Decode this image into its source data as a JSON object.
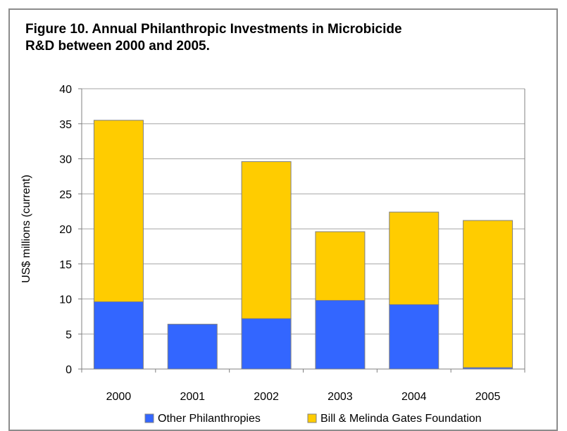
{
  "chart_data": {
    "type": "bar",
    "stacked": true,
    "title": "Figure 10. Annual Philanthropic Investments in Microbicide R&D between 2000 and 2005.",
    "xlabel": "",
    "ylabel": "US$ millions (current)",
    "ylim": [
      0,
      40
    ],
    "yticks": [
      0,
      5,
      10,
      15,
      20,
      25,
      30,
      35,
      40
    ],
    "categories": [
      "2000",
      "2001",
      "2002",
      "2003",
      "2004",
      "2005"
    ],
    "grid": true,
    "legend_position": "bottom",
    "series": [
      {
        "name": "Other Philanthropies",
        "color": "#3366ff",
        "values": [
          9.6,
          6.4,
          7.2,
          9.8,
          9.2,
          0.2
        ]
      },
      {
        "name": "Bill & Melinda Gates Foundation",
        "color": "#ffcc00",
        "values": [
          25.9,
          0,
          22.4,
          9.8,
          13.2,
          21.0
        ]
      }
    ]
  }
}
